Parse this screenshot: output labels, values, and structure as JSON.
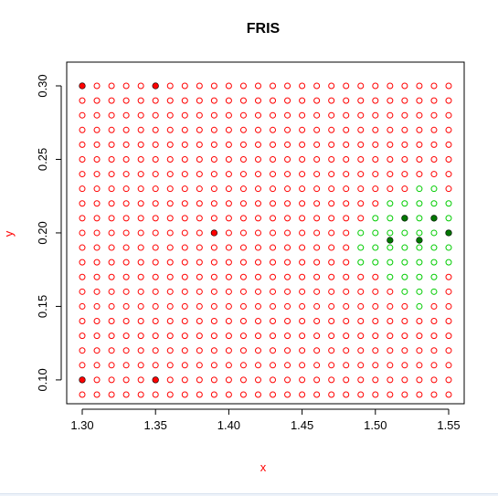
{
  "chart_data": {
    "type": "scatter",
    "title": "FRIS",
    "xlabel": "x",
    "ylabel": "y",
    "xlim": [
      1.3,
      1.55
    ],
    "ylim": [
      0.09,
      0.3
    ],
    "grid": false,
    "legend": "none",
    "x_ticks": [
      "1.30",
      "1.35",
      "1.40",
      "1.45",
      "1.50",
      "1.55"
    ],
    "y_ticks": [
      "0.10",
      "0.15",
      "0.20",
      "0.25",
      "0.30"
    ],
    "grid_points": {
      "x_start": 1.3,
      "x_end": 1.55,
      "x_step": 0.01,
      "y_start": 0.09,
      "y_end": 0.3,
      "y_step": 0.01,
      "marker": "open-circle",
      "default_color": "#ff0000",
      "green_region_color": "#00cc00",
      "green_region": [
        {
          "x": 1.49,
          "y": [
            0.18,
            0.2
          ]
        },
        {
          "x": 1.5,
          "y": [
            0.18,
            0.21
          ]
        },
        {
          "x": 1.51,
          "y": [
            0.17,
            0.22
          ]
        },
        {
          "x": 1.52,
          "y": [
            0.16,
            0.22
          ]
        },
        {
          "x": 1.53,
          "y": [
            0.15,
            0.23
          ]
        },
        {
          "x": 1.54,
          "y": [
            0.16,
            0.23
          ]
        },
        {
          "x": 1.55,
          "y": [
            0.18,
            0.22
          ]
        }
      ]
    },
    "series": [
      {
        "name": "red",
        "color": "#ff0000",
        "marker": "filled-circle",
        "points": [
          [
            1.3,
            0.3
          ],
          [
            1.35,
            0.3
          ],
          [
            1.39,
            0.2
          ],
          [
            1.3,
            0.1
          ],
          [
            1.35,
            0.1
          ]
        ]
      },
      {
        "name": "green",
        "color": "#007700",
        "marker": "filled-circle",
        "points": [
          [
            1.51,
            0.195
          ],
          [
            1.53,
            0.195
          ],
          [
            1.52,
            0.21
          ],
          [
            1.54,
            0.21
          ],
          [
            1.55,
            0.2
          ]
        ]
      }
    ]
  }
}
